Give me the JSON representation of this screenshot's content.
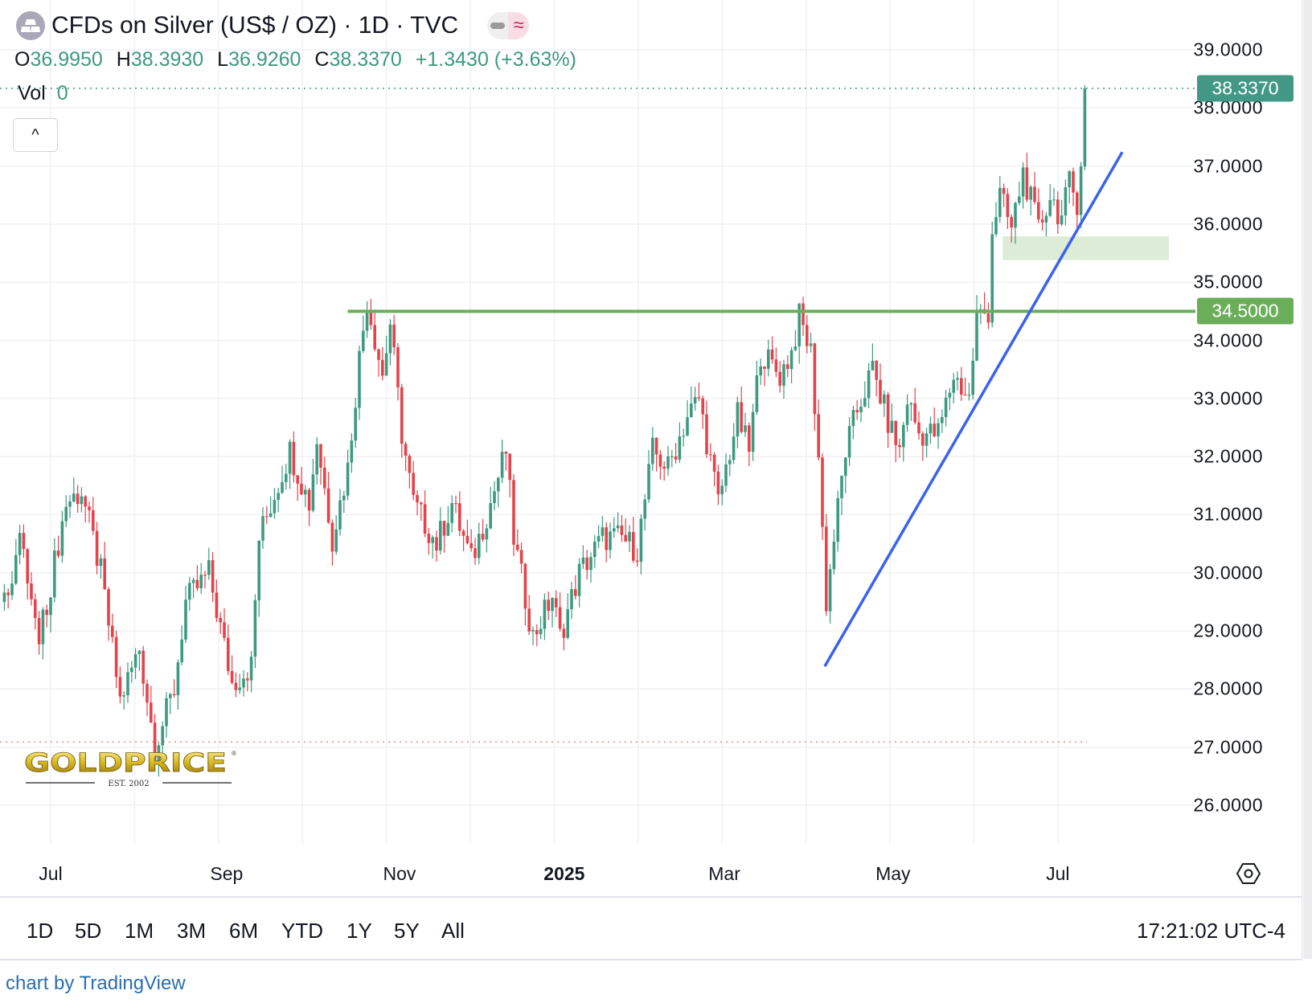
{
  "header": {
    "title": "CFDs on Silver (US$ / OZ) · 1D · TVC",
    "icon": "silver-bars-icon",
    "pill_right": "≈"
  },
  "ohlc": {
    "o_label": "O",
    "o": "36.9950",
    "h_label": "H",
    "h": "38.3930",
    "l_label": "L",
    "l": "36.9260",
    "c_label": "C",
    "c": "38.3370",
    "change": "+1.3430 (+3.63%)"
  },
  "volume": {
    "label": "Vol",
    "value": "0"
  },
  "collapse_icon": "^",
  "price_tags": {
    "last": "38.3370",
    "level": "34.5000"
  },
  "toolbar": {
    "ranges": [
      "1D",
      "5D",
      "1M",
      "3M",
      "6M",
      "YTD",
      "1Y",
      "5Y",
      "All"
    ],
    "clock": "17:21:02 UTC-4"
  },
  "credit": "chart by TradingView",
  "logo": {
    "name": "GOLDPRICE",
    "sub": "EST. 2002"
  },
  "colors": {
    "up": "#3d9a80",
    "down": "#e4434b",
    "level": "#6aae5a",
    "trend": "#3a62f0",
    "zone": "#dcecd7",
    "last": "#429884"
  },
  "chart_data": {
    "type": "candlestick",
    "title": "CFDs on Silver (US$ / OZ) · 1D · TVC",
    "x_unit": "trading days from 2024-07-01",
    "y_ticks": [
      "39.0000",
      "38.0000",
      "37.0000",
      "36.0000",
      "35.0000",
      "34.0000",
      "33.0000",
      "32.0000",
      "31.0000",
      "30.0000",
      "29.0000",
      "28.0000",
      "27.0000",
      "26.0000"
    ],
    "ylim": [
      25.7,
      39.6
    ],
    "x_ticks": [
      {
        "label": "Jul",
        "day": 0
      },
      {
        "label": "Sep",
        "day": 45.6
      },
      {
        "label": "Nov",
        "day": 90.4
      },
      {
        "label": "2025",
        "day": 133.1,
        "bold": true
      },
      {
        "label": "Mar",
        "day": 174.6
      },
      {
        "label": "May",
        "day": 218.3
      },
      {
        "label": "Jul",
        "day": 261
      }
    ],
    "close_path": [
      [
        -12,
        29.5
      ],
      [
        -8,
        30.6
      ],
      [
        -3,
        28.8
      ],
      [
        4,
        31.2
      ],
      [
        8,
        31.4
      ],
      [
        13,
        30.0
      ],
      [
        18,
        27.8
      ],
      [
        23,
        28.7
      ],
      [
        27,
        27.0
      ],
      [
        32,
        28.0
      ],
      [
        35,
        29.5
      ],
      [
        41,
        30.0
      ],
      [
        47,
        28.1
      ],
      [
        52,
        28.4
      ],
      [
        54,
        30.6
      ],
      [
        62,
        32.1
      ],
      [
        67,
        31.2
      ],
      [
        69,
        32.3
      ],
      [
        73,
        30.6
      ],
      [
        77,
        31.8
      ],
      [
        80,
        33.7
      ],
      [
        82,
        34.7
      ],
      [
        86,
        33.4
      ],
      [
        88,
        34.3
      ],
      [
        91,
        32.4
      ],
      [
        94,
        31.2
      ],
      [
        100,
        30.5
      ],
      [
        104,
        31.2
      ],
      [
        109,
        30.2
      ],
      [
        114,
        31.2
      ],
      [
        118,
        32.1
      ],
      [
        120,
        30.6
      ],
      [
        125,
        28.9
      ],
      [
        130,
        29.6
      ],
      [
        132,
        28.9
      ],
      [
        137,
        30.0
      ],
      [
        143,
        30.6
      ],
      [
        148,
        30.6
      ],
      [
        152,
        30.4
      ],
      [
        156,
        32.1
      ],
      [
        160,
        31.8
      ],
      [
        165,
        32.7
      ],
      [
        168,
        33.0
      ],
      [
        173,
        31.2
      ],
      [
        178,
        32.7
      ],
      [
        181,
        32.1
      ],
      [
        184,
        33.8
      ],
      [
        189,
        33.4
      ],
      [
        192,
        33.8
      ],
      [
        194,
        34.4
      ],
      [
        197,
        33.8
      ],
      [
        199,
        32.0
      ],
      [
        201,
        29.5
      ],
      [
        203,
        30.6
      ],
      [
        206,
        32.1
      ],
      [
        209,
        32.8
      ],
      [
        213,
        33.5
      ],
      [
        217,
        32.6
      ],
      [
        220,
        32.1
      ],
      [
        222,
        33.0
      ],
      [
        225,
        32.4
      ],
      [
        230,
        32.4
      ],
      [
        234,
        33.4
      ],
      [
        238,
        33.0
      ],
      [
        240,
        34.4
      ],
      [
        243,
        34.5
      ],
      [
        244,
        35.9
      ],
      [
        246,
        36.5
      ],
      [
        249,
        35.9
      ],
      [
        252,
        36.9
      ],
      [
        256,
        35.9
      ],
      [
        259,
        36.5
      ],
      [
        262,
        36.1
      ],
      [
        264,
        36.7
      ],
      [
        266,
        36.4
      ],
      [
        267,
        36.994
      ]
    ],
    "last_candle": {
      "day": 268,
      "open": 36.995,
      "high": 38.393,
      "low": 36.926,
      "close": 38.337
    },
    "horizontal_level": {
      "price": 34.5,
      "from_day": 77
    },
    "trend_line": {
      "from": [
        200.6,
        28.39
      ],
      "to": [
        277.7,
        37.24
      ]
    },
    "zone": {
      "from_day": 246.7,
      "to_day": 289.8,
      "top": 35.79,
      "bottom": 35.38
    },
    "low_marker": 27.09,
    "last_price": 38.337
  }
}
